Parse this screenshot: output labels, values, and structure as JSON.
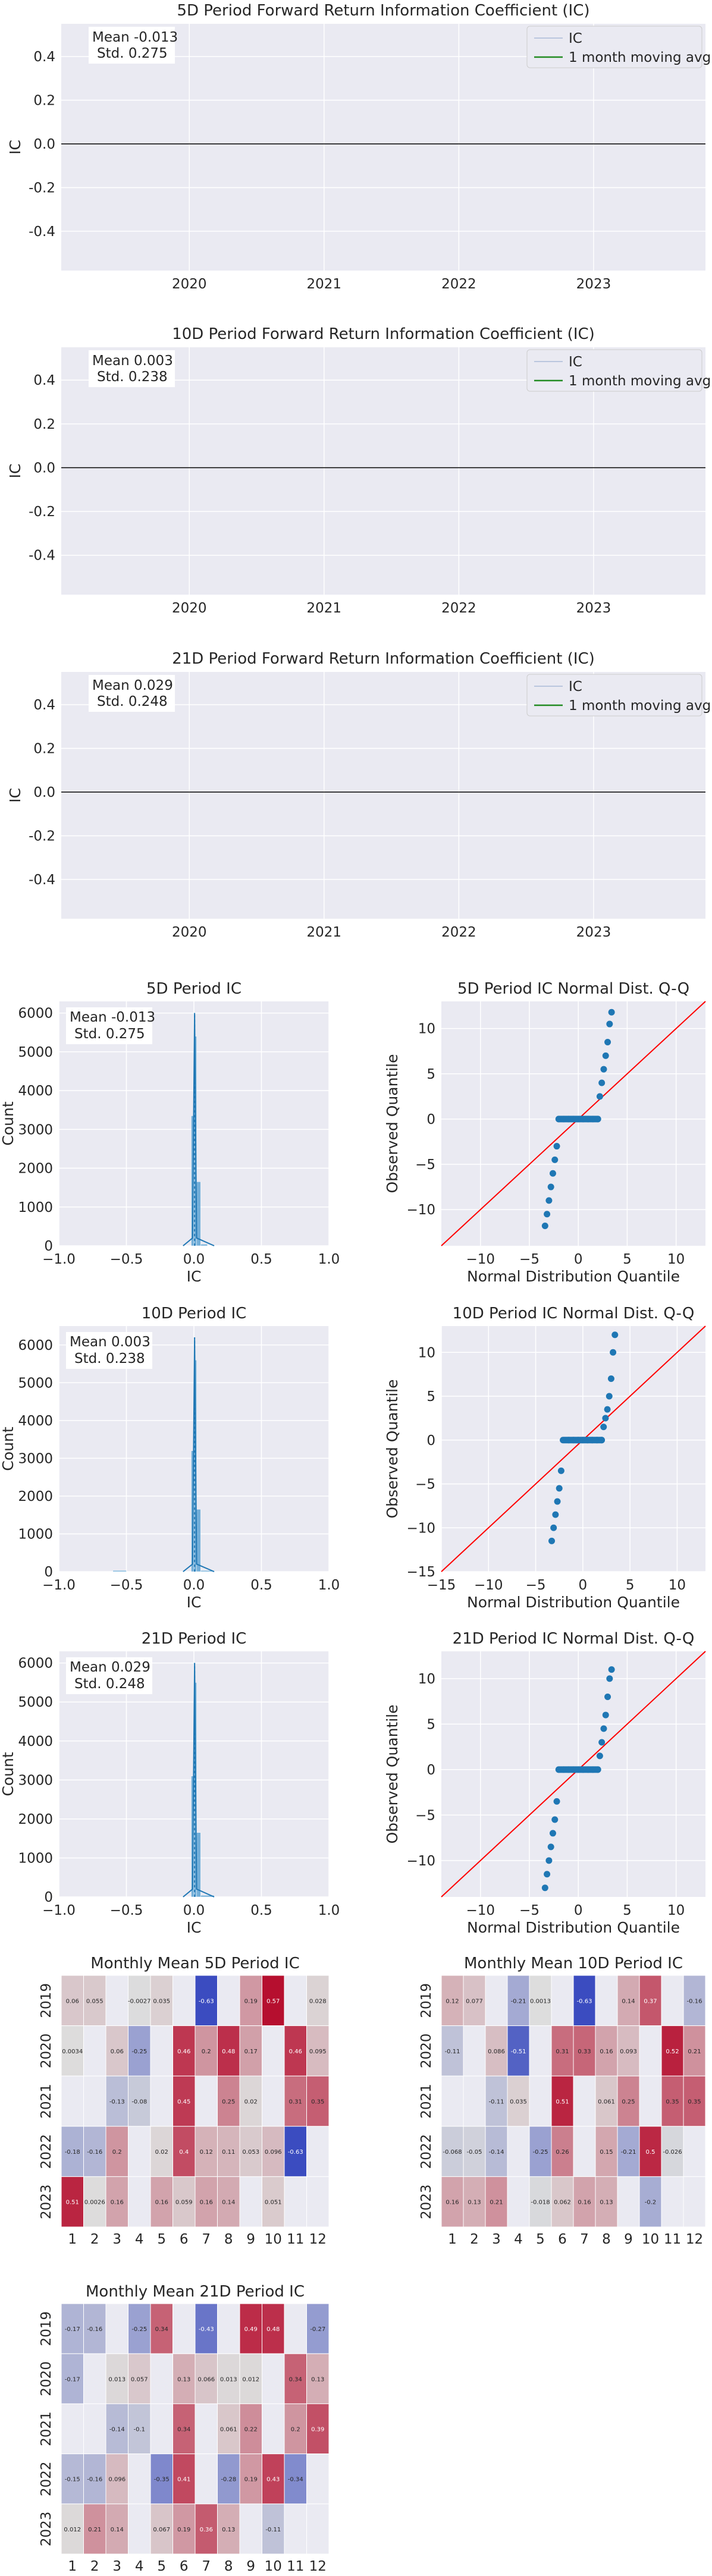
{
  "colors": {
    "panel_bg": "#eaeaf2",
    "grid": "#ffffff",
    "ic_line": "#4c72b0",
    "moving_avg": "#228b22",
    "zero_line": "#000000",
    "qq_points": "#1f77b4",
    "qq_line": "#ff0000",
    "hist": "#4c9bd0",
    "heat_low": "#3b4cc0",
    "heat_mid": "#dddddd",
    "heat_high": "#b40426"
  },
  "chart_data": [
    {
      "type": "line",
      "title": "5D Period Forward Return Information Coefficient (IC)",
      "ylabel": "IC",
      "xlabel": "",
      "x_ticks": [
        "2020",
        "2021",
        "2022",
        "2023"
      ],
      "x_range": [
        2019.05,
        2023.83
      ],
      "ylim": [
        -0.58,
        0.55
      ],
      "y_ticks": [
        -0.4,
        -0.2,
        0.0,
        0.2,
        0.4
      ],
      "y_tick_labels": [
        "-0.4",
        "-0.2",
        "0.0",
        "0.2",
        "0.4"
      ],
      "annotation": [
        "Mean -0.013",
        "Std. 0.275"
      ],
      "legend": [
        "IC",
        "1 month moving avg"
      ],
      "legend_position": "top-right",
      "grid": true
    },
    {
      "type": "line",
      "title": "10D Period Forward Return Information Coefficient (IC)",
      "ylabel": "IC",
      "xlabel": "",
      "x_ticks": [
        "2020",
        "2021",
        "2022",
        "2023"
      ],
      "x_range": [
        2019.05,
        2023.83
      ],
      "ylim": [
        -0.58,
        0.55
      ],
      "y_ticks": [
        -0.4,
        -0.2,
        0.0,
        0.2,
        0.4
      ],
      "y_tick_labels": [
        "-0.4",
        "-0.2",
        "0.0",
        "0.2",
        "0.4"
      ],
      "annotation": [
        "Mean 0.003",
        "Std. 0.238"
      ],
      "legend": [
        "IC",
        "1 month moving avg"
      ],
      "legend_position": "top-right",
      "grid": true
    },
    {
      "type": "line",
      "title": "21D Period Forward Return Information Coefficient (IC)",
      "ylabel": "IC",
      "xlabel": "",
      "x_ticks": [
        "2020",
        "2021",
        "2022",
        "2023"
      ],
      "x_range": [
        2019.05,
        2023.83
      ],
      "ylim": [
        -0.58,
        0.55
      ],
      "y_ticks": [
        -0.4,
        -0.2,
        0.0,
        0.2,
        0.4
      ],
      "y_tick_labels": [
        "-0.4",
        "-0.2",
        "0.0",
        "0.2",
        "0.4"
      ],
      "annotation": [
        "Mean 0.029",
        "Std. 0.248"
      ],
      "legend": [
        "IC",
        "1 month moving avg"
      ],
      "legend_position": "top-right",
      "grid": true
    },
    {
      "type": "bar",
      "title": "5D Period IC",
      "xlabel": "IC",
      "ylabel": "Count",
      "xlim": [
        -1.0,
        1.0
      ],
      "ylim": [
        0,
        6300
      ],
      "x_ticks": [
        -1.0,
        -0.5,
        0.0,
        0.5,
        1.0
      ],
      "x_tick_labels": [
        "−1.0",
        "−0.5",
        "0.0",
        "0.5",
        "1.0"
      ],
      "y_ticks": [
        0,
        1000,
        2000,
        3000,
        4000,
        5000,
        6000
      ],
      "y_tick_labels": [
        "0",
        "1000",
        "2000",
        "3000",
        "4000",
        "5000",
        "6000"
      ],
      "bins": [
        {
          "x0": -0.02,
          "x1": 0.0,
          "count": 3350
        },
        {
          "x0": 0.0,
          "x1": 0.02,
          "count": 5400
        },
        {
          "x0": 0.02,
          "x1": 0.05,
          "count": 1650
        },
        {
          "x0": 0.05,
          "x1": 0.1,
          "count": 40
        }
      ],
      "kde_peak": 6000,
      "annotation": [
        "Mean -0.013",
        "Std. 0.275"
      ],
      "grid": true
    },
    {
      "type": "scatter",
      "title": "5D Period IC Normal Dist. Q-Q",
      "xlabel": "Normal Distribution Quantile",
      "ylabel": "Observed Quantile",
      "xlim": [
        -14,
        13
      ],
      "ylim": [
        -14,
        13
      ],
      "x_ticks": [
        -10,
        -5,
        0,
        5,
        10
      ],
      "x_tick_labels": [
        "−10",
        "−5",
        "0",
        "5",
        "10"
      ],
      "y_ticks": [
        -10,
        -5,
        0,
        5,
        10
      ],
      "y_tick_labels": [
        "−10",
        "−5",
        "0",
        "5",
        "10"
      ],
      "points_x": [
        -3.4,
        -3.2,
        -3.0,
        -2.8,
        -2.6,
        -2.4,
        -2.2,
        -2.0,
        -1.5,
        -1.0,
        -0.5,
        0.0,
        0.5,
        1.0,
        1.5,
        2.0,
        2.2,
        2.4,
        2.6,
        2.8,
        3.0,
        3.2,
        3.4
      ],
      "points_y": [
        -11.8,
        -10.5,
        -9.0,
        -7.5,
        -6.0,
        -4.5,
        -3.0,
        0.0,
        0.0,
        0.0,
        0.0,
        0.0,
        0.0,
        0.0,
        0.0,
        0.0,
        2.5,
        4.0,
        5.5,
        7.0,
        8.5,
        10.5,
        11.8
      ],
      "grid": true
    },
    {
      "type": "bar",
      "title": "10D Period IC",
      "xlabel": "IC",
      "ylabel": "Count",
      "xlim": [
        -1.0,
        1.0
      ],
      "ylim": [
        0,
        6500
      ],
      "x_ticks": [
        -1.0,
        -0.5,
        0.0,
        0.5,
        1.0
      ],
      "x_tick_labels": [
        "−1.0",
        "−0.5",
        "0.0",
        "0.5",
        "1.0"
      ],
      "y_ticks": [
        0,
        1000,
        2000,
        3000,
        4000,
        5000,
        6000
      ],
      "y_tick_labels": [
        "0",
        "1000",
        "2000",
        "3000",
        "4000",
        "5000",
        "6000"
      ],
      "bins": [
        {
          "x0": -0.6,
          "x1": -0.5,
          "count": 30
        },
        {
          "x0": -0.02,
          "x1": 0.0,
          "count": 3200
        },
        {
          "x0": 0.0,
          "x1": 0.02,
          "count": 5600
        },
        {
          "x0": 0.02,
          "x1": 0.05,
          "count": 1650
        },
        {
          "x0": 0.05,
          "x1": 0.15,
          "count": 30
        }
      ],
      "kde_peak": 6200,
      "annotation": [
        "Mean 0.003",
        "Std. 0.238"
      ],
      "grid": true
    },
    {
      "type": "scatter",
      "title": "10D Period IC Normal Dist. Q-Q",
      "xlabel": "Normal Distribution Quantile",
      "ylabel": "Observed Quantile",
      "xlim": [
        -15,
        13
      ],
      "ylim": [
        -15,
        13
      ],
      "x_ticks": [
        -15,
        -10,
        -5,
        0,
        5,
        10
      ],
      "x_tick_labels": [
        "−15",
        "−10",
        "−5",
        "0",
        "5",
        "10"
      ],
      "y_ticks": [
        -15,
        -10,
        -5,
        0,
        5,
        10
      ],
      "y_tick_labels": [
        "−15",
        "−10",
        "−5",
        "0",
        "5",
        "10"
      ],
      "points_x": [
        -3.3,
        -3.1,
        -2.9,
        -2.7,
        -2.5,
        -2.3,
        -2.1,
        -1.5,
        -1.0,
        -0.5,
        0.0,
        0.5,
        1.0,
        1.5,
        2.0,
        2.2,
        2.4,
        2.6,
        2.8,
        3.0,
        3.2,
        3.4
      ],
      "points_y": [
        -11.5,
        -10.0,
        -8.5,
        -7.0,
        -5.5,
        -3.5,
        0.0,
        0.0,
        0.0,
        0.0,
        0.0,
        0.0,
        0.0,
        0.0,
        0.0,
        1.5,
        2.5,
        3.5,
        5.0,
        7.0,
        10.0,
        12.0
      ],
      "grid": true
    },
    {
      "type": "bar",
      "title": "21D Period IC",
      "xlabel": "IC",
      "ylabel": "Count",
      "xlim": [
        -1.0,
        1.0
      ],
      "ylim": [
        0,
        6300
      ],
      "x_ticks": [
        -1.0,
        -0.5,
        0.0,
        0.5,
        1.0
      ],
      "x_tick_labels": [
        "−1.0",
        "−0.5",
        "0.0",
        "0.5",
        "1.0"
      ],
      "y_ticks": [
        0,
        1000,
        2000,
        3000,
        4000,
        5000,
        6000
      ],
      "y_tick_labels": [
        "0",
        "1000",
        "2000",
        "3000",
        "4000",
        "5000",
        "6000"
      ],
      "bins": [
        {
          "x0": -0.02,
          "x1": 0.0,
          "count": 3100
        },
        {
          "x0": 0.0,
          "x1": 0.02,
          "count": 5500
        },
        {
          "x0": 0.02,
          "x1": 0.05,
          "count": 1650
        },
        {
          "x0": 0.05,
          "x1": 0.15,
          "count": 40
        }
      ],
      "kde_peak": 6000,
      "annotation": [
        "Mean 0.029",
        "Std. 0.248"
      ],
      "grid": true
    },
    {
      "type": "scatter",
      "title": "21D Period IC Normal Dist. Q-Q",
      "xlabel": "Normal Distribution Quantile",
      "ylabel": "Observed Quantile",
      "xlim": [
        -14,
        13
      ],
      "ylim": [
        -14,
        13
      ],
      "x_ticks": [
        -10,
        -5,
        0,
        5,
        10
      ],
      "x_tick_labels": [
        "−10",
        "−5",
        "0",
        "5",
        "10"
      ],
      "y_ticks": [
        -10,
        -5,
        0,
        5,
        10
      ],
      "y_tick_labels": [
        "−10",
        "−5",
        "0",
        "5",
        "10"
      ],
      "points_x": [
        -3.4,
        -3.2,
        -3.0,
        -2.8,
        -2.6,
        -2.4,
        -2.2,
        -2.0,
        -1.5,
        -1.0,
        -0.5,
        0.0,
        0.5,
        1.0,
        1.5,
        2.0,
        2.2,
        2.4,
        2.6,
        2.8,
        3.0,
        3.2,
        3.4
      ],
      "points_y": [
        -13.0,
        -11.5,
        -10.0,
        -8.5,
        -7.0,
        -5.5,
        -3.5,
        0.0,
        0.0,
        0.0,
        0.0,
        0.0,
        0.0,
        0.0,
        0.0,
        0.0,
        1.5,
        3.0,
        4.5,
        6.0,
        8.0,
        10.0,
        11.0
      ],
      "grid": true
    },
    {
      "type": "heatmap",
      "title": "Monthly Mean 5D Period IC",
      "rows": [
        "2019",
        "2020",
        "2021",
        "2022",
        "2023"
      ],
      "cols": [
        "1",
        "2",
        "3",
        "4",
        "5",
        "6",
        "7",
        "8",
        "9",
        "10",
        "11",
        "12"
      ],
      "values": [
        [
          0.06,
          0.055,
          null,
          -0.0027,
          0.035,
          null,
          -0.63,
          null,
          0.19,
          0.57,
          null,
          0.028
        ],
        [
          0.0034,
          null,
          0.06,
          -0.25,
          null,
          0.46,
          0.2,
          0.48,
          0.17,
          null,
          0.46,
          0.095
        ],
        [
          null,
          null,
          -0.13,
          -0.08,
          null,
          0.45,
          null,
          0.25,
          0.02,
          null,
          0.31,
          0.35
        ],
        [
          -0.18,
          -0.16,
          0.2,
          null,
          0.02,
          0.4,
          0.12,
          0.11,
          0.053,
          0.096,
          -0.63,
          null
        ],
        [
          0.51,
          0.0026,
          0.16,
          null,
          0.16,
          0.059,
          0.16,
          0.14,
          null,
          0.051,
          null,
          null
        ]
      ],
      "vmin": -0.6,
      "vmax": 0.6
    },
    {
      "type": "heatmap",
      "title": "Monthly Mean 10D Period IC",
      "rows": [
        "2019",
        "2020",
        "2021",
        "2022",
        "2023"
      ],
      "cols": [
        "1",
        "2",
        "3",
        "4",
        "5",
        "6",
        "7",
        "8",
        "9",
        "10",
        "11",
        "12"
      ],
      "values": [
        [
          0.12,
          0.077,
          null,
          -0.21,
          0.0013,
          null,
          -0.63,
          null,
          0.14,
          0.37,
          null,
          -0.16
        ],
        [
          -0.11,
          null,
          0.086,
          -0.51,
          null,
          0.31,
          0.33,
          0.16,
          0.093,
          null,
          0.52,
          0.21
        ],
        [
          null,
          null,
          -0.11,
          0.035,
          null,
          0.51,
          null,
          0.061,
          0.25,
          null,
          0.35,
          0.35
        ],
        [
          -0.068,
          -0.05,
          -0.14,
          null,
          -0.25,
          0.26,
          null,
          0.15,
          -0.21,
          0.5,
          -0.026,
          null
        ],
        [
          0.16,
          0.13,
          0.21,
          null,
          -0.018,
          0.062,
          0.16,
          0.13,
          null,
          -0.2,
          null,
          null
        ]
      ],
      "vmin": -0.6,
      "vmax": 0.6
    },
    {
      "type": "heatmap",
      "title": "Monthly Mean 21D Period IC",
      "rows": [
        "2019",
        "2020",
        "2021",
        "2022",
        "2023"
      ],
      "cols": [
        "1",
        "2",
        "3",
        "4",
        "5",
        "6",
        "7",
        "8",
        "9",
        "10",
        "11",
        "12"
      ],
      "values": [
        [
          -0.17,
          -0.16,
          null,
          -0.25,
          0.34,
          null,
          -0.43,
          null,
          0.49,
          0.48,
          null,
          -0.27
        ],
        [
          -0.17,
          null,
          0.013,
          0.057,
          null,
          0.13,
          0.066,
          0.013,
          0.012,
          null,
          0.34,
          0.13
        ],
        [
          null,
          null,
          -0.14,
          -0.1,
          null,
          0.34,
          null,
          0.061,
          0.22,
          null,
          0.2,
          0.39
        ],
        [
          -0.15,
          -0.16,
          0.096,
          null,
          -0.35,
          0.41,
          null,
          -0.28,
          0.19,
          0.43,
          -0.34,
          null
        ],
        [
          0.012,
          0.21,
          0.14,
          null,
          0.067,
          0.19,
          0.36,
          0.13,
          null,
          -0.11,
          null,
          null
        ]
      ],
      "vmin": -0.6,
      "vmax": 0.6
    }
  ]
}
